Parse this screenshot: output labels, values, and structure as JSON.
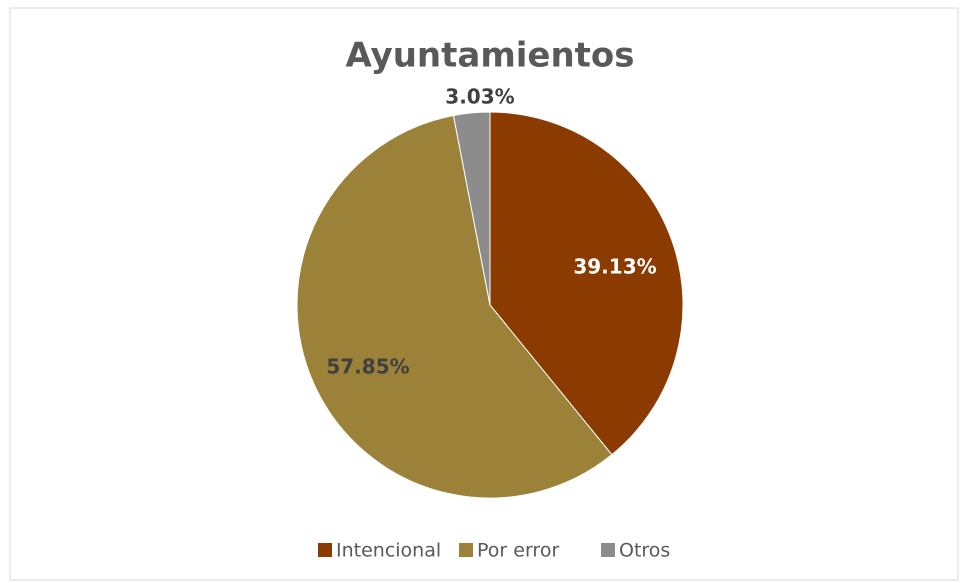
{
  "chart_data": {
    "type": "pie",
    "title": "Ayuntamientos",
    "categories": [
      "Intencional",
      "Por error",
      "Otros"
    ],
    "values": [
      39.13,
      57.85,
      3.03
    ],
    "value_labels": [
      "39.13%",
      "57.85%",
      "3.03%"
    ],
    "colors": [
      "#8b3a00",
      "#9c8238",
      "#8c8c8c"
    ],
    "legend": "bottom"
  }
}
